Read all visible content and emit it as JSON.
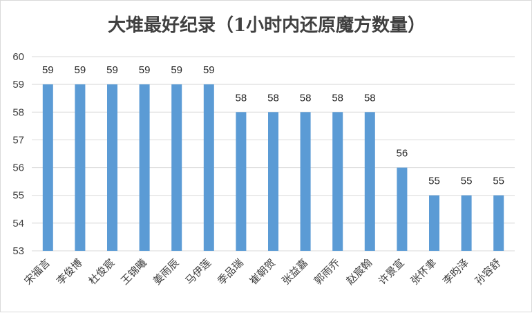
{
  "chart_data": {
    "type": "bar",
    "title": "大堆最好纪录（1小时内还原魔方数量）",
    "xlabel": "",
    "ylabel": "",
    "ylim": [
      53,
      60
    ],
    "yticks": [
      53,
      54,
      55,
      56,
      57,
      58,
      59,
      60
    ],
    "grid": true,
    "legend": "none",
    "bar_color": "#5b9bd5",
    "categories": [
      "宋福言",
      "李俊博",
      "杜俊宸",
      "王锦曦",
      "姜雨辰",
      "马伊莲",
      "季品瑞",
      "崔朝贺",
      "张益嘉",
      "郭雨乔",
      "赵宸翰",
      "许景宣",
      "张怀聿",
      "李昀泽",
      "孙容舒"
    ],
    "values": [
      59,
      59,
      59,
      59,
      59,
      59,
      58,
      58,
      58,
      58,
      58,
      56,
      55,
      55,
      55
    ]
  }
}
